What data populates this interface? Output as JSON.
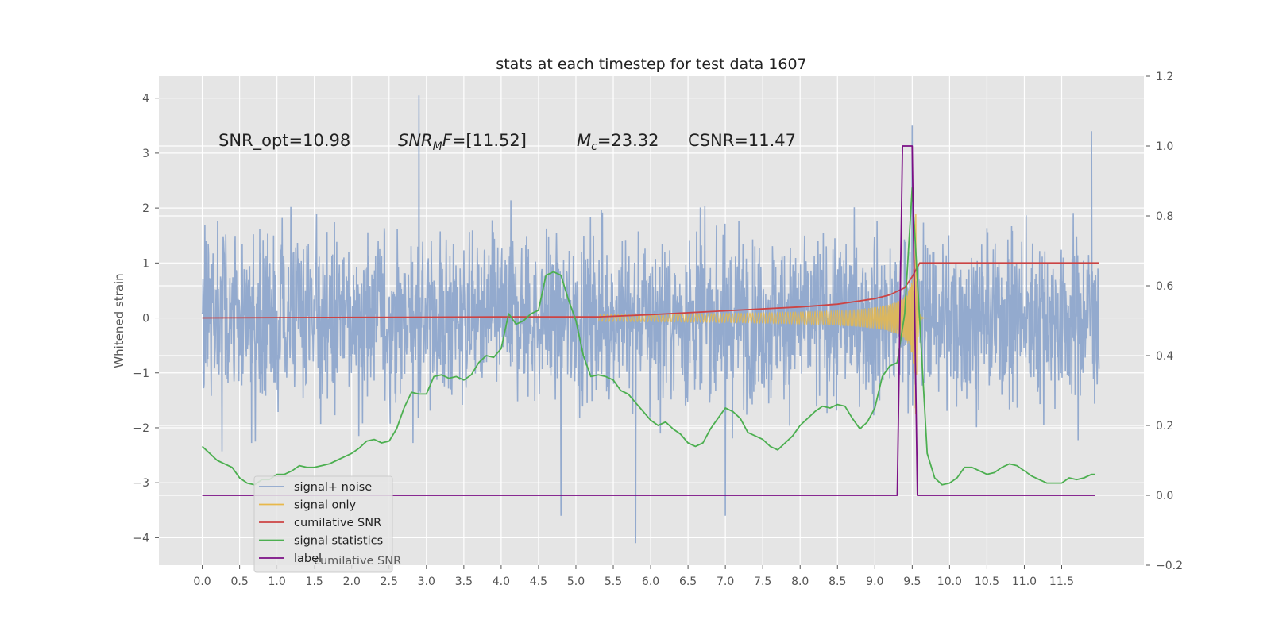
{
  "chart_data": {
    "type": "line",
    "title": "stats at each timestep for test data 1607",
    "ylabel": "Whitened strain",
    "xlabel": "",
    "xlim": [
      -0.58,
      12.6
    ],
    "ylim_left": [
      -4.5,
      4.4
    ],
    "ylim_right": [
      -0.2,
      1.2
    ],
    "x_ticks": [
      "0.0",
      "0.5",
      "1.0",
      "1.5",
      "2.0",
      "2.5",
      "3.0",
      "3.5",
      "4.0",
      "4.5",
      "5.0",
      "5.5",
      "6.0",
      "6.5",
      "7.0",
      "7.5",
      "8.0",
      "8.5",
      "9.0",
      "9.5",
      "10.0",
      "10.5",
      "11.0",
      "11.5"
    ],
    "y_ticks_left": [
      "4",
      "3",
      "2",
      "1",
      "0",
      "−1",
      "−2",
      "−3",
      "−4"
    ],
    "y_ticks_right": [
      "1.2",
      "1.0",
      "0.8",
      "0.6",
      "0.4",
      "0.2",
      "0.0",
      "−0.2"
    ],
    "annotations": {
      "snr_opt": "SNR_opt=10.98",
      "snr_mf_prefix": "SNR",
      "snr_mf_sub": "M",
      "snr_mf_suffix": "F=[11.52]",
      "mc_prefix": "M",
      "mc_sub": "c",
      "mc_suffix": "=23.32",
      "csnr": "CSNR=11.47"
    },
    "legend": {
      "position": "lower-left",
      "entries": [
        {
          "label": "signal+ noise",
          "color": "#8EA6CC"
        },
        {
          "label": "signal only",
          "color": "#E8B84A"
        },
        {
          "label": "cumilative SNR",
          "color": "#CC4444"
        },
        {
          "label": "signal statistics",
          "color": "#4CAF50"
        },
        {
          "label": "label",
          "color": "#7B0E85"
        }
      ],
      "ghost_text": "cumilative SNR"
    },
    "series": [
      {
        "name": "signal+ noise",
        "axis": "left",
        "color": "#8EA6CC",
        "x_range": [
          0,
          12.0
        ],
        "typical_amplitude": 1.8,
        "spikes": [
          [
            2.9,
            4.05
          ],
          [
            5.8,
            -4.1
          ],
          [
            9.5,
            3.5
          ],
          [
            4.8,
            -3.6
          ],
          [
            7.0,
            -3.6
          ],
          [
            11.9,
            3.4
          ]
        ]
      },
      {
        "name": "signal only",
        "axis": "left",
        "color": "#E8B84A",
        "x_range": [
          5.3,
          12.0
        ],
        "chirp_peak_time": 9.55,
        "peak_amplitude": 1.9
      },
      {
        "name": "cumilative SNR",
        "axis": "left",
        "color": "#CC4444",
        "x": [
          0,
          2.0,
          4.0,
          5.3,
          6.0,
          7.0,
          8.0,
          8.5,
          9.0,
          9.2,
          9.4,
          9.5,
          9.6,
          12.0
        ],
        "values": [
          0,
          0.01,
          0.02,
          0.02,
          0.06,
          0.13,
          0.2,
          0.25,
          0.35,
          0.42,
          0.55,
          0.75,
          1.0,
          1.0
        ]
      },
      {
        "name": "signal statistics",
        "axis": "right",
        "color": "#4CAF50",
        "x": [
          0,
          0.1,
          0.2,
          0.3,
          0.4,
          0.5,
          0.6,
          0.7,
          0.8,
          0.9,
          1.0,
          1.1,
          1.2,
          1.3,
          1.4,
          1.5,
          1.6,
          1.7,
          1.8,
          1.9,
          2.0,
          2.1,
          2.2,
          2.3,
          2.4,
          2.5,
          2.6,
          2.7,
          2.8,
          2.9,
          3.0,
          3.1,
          3.2,
          3.3,
          3.4,
          3.5,
          3.6,
          3.7,
          3.8,
          3.9,
          4.0,
          4.1,
          4.2,
          4.3,
          4.4,
          4.5,
          4.6,
          4.7,
          4.8,
          4.9,
          5.0,
          5.1,
          5.2,
          5.3,
          5.4,
          5.5,
          5.6,
          5.7,
          5.8,
          5.9,
          6.0,
          6.1,
          6.2,
          6.3,
          6.4,
          6.5,
          6.6,
          6.7,
          6.8,
          6.9,
          7.0,
          7.1,
          7.2,
          7.3,
          7.4,
          7.5,
          7.6,
          7.7,
          7.8,
          7.9,
          8.0,
          8.1,
          8.2,
          8.3,
          8.4,
          8.5,
          8.6,
          8.7,
          8.8,
          8.9,
          9.0,
          9.1,
          9.2,
          9.3,
          9.4,
          9.5,
          9.6,
          9.7,
          9.8,
          9.9,
          10.0,
          10.1,
          10.2,
          10.3,
          10.4,
          10.5,
          10.6,
          10.7,
          10.8,
          10.9,
          11.0,
          11.1,
          11.2,
          11.3,
          11.4,
          11.5,
          11.6,
          11.7,
          11.8,
          11.9,
          11.95
        ],
        "values": [
          0.14,
          0.12,
          0.1,
          0.09,
          0.08,
          0.05,
          0.035,
          0.03,
          0.045,
          0.045,
          0.06,
          0.06,
          0.07,
          0.085,
          0.08,
          0.08,
          0.085,
          0.09,
          0.1,
          0.11,
          0.12,
          0.135,
          0.155,
          0.16,
          0.15,
          0.155,
          0.19,
          0.25,
          0.295,
          0.29,
          0.29,
          0.34,
          0.345,
          0.335,
          0.34,
          0.33,
          0.345,
          0.38,
          0.4,
          0.395,
          0.42,
          0.52,
          0.49,
          0.5,
          0.52,
          0.53,
          0.63,
          0.64,
          0.63,
          0.56,
          0.5,
          0.4,
          0.34,
          0.345,
          0.34,
          0.33,
          0.3,
          0.29,
          0.265,
          0.24,
          0.215,
          0.2,
          0.21,
          0.19,
          0.175,
          0.15,
          0.14,
          0.15,
          0.19,
          0.22,
          0.25,
          0.24,
          0.22,
          0.18,
          0.17,
          0.16,
          0.14,
          0.13,
          0.15,
          0.17,
          0.2,
          0.22,
          0.24,
          0.255,
          0.25,
          0.26,
          0.255,
          0.22,
          0.19,
          0.21,
          0.25,
          0.34,
          0.37,
          0.38,
          0.52,
          0.88,
          0.5,
          0.12,
          0.05,
          0.03,
          0.035,
          0.05,
          0.08,
          0.08,
          0.07,
          0.06,
          0.065,
          0.08,
          0.09,
          0.085,
          0.07,
          0.055,
          0.045,
          0.035,
          0.035,
          0.035,
          0.05,
          0.045,
          0.05,
          0.06,
          0.06
        ]
      },
      {
        "name": "label",
        "axis": "right",
        "color": "#7B0E85",
        "x": [
          0,
          9.3,
          9.37,
          9.5,
          9.57,
          11.95
        ],
        "values": [
          0,
          0,
          1.0,
          1.0,
          0,
          0
        ]
      }
    ]
  }
}
